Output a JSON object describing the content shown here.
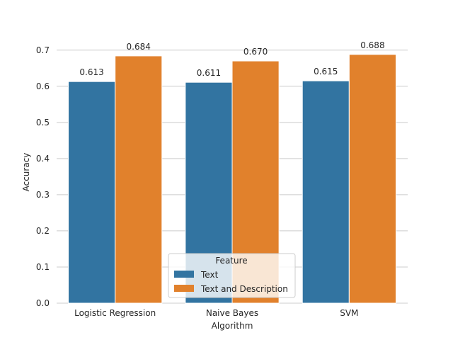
{
  "chart_data": {
    "type": "bar",
    "categories": [
      "Logistic Regression",
      "Naive Bayes",
      "SVM"
    ],
    "series": [
      {
        "name": "Text",
        "values": [
          0.613,
          0.611,
          0.615
        ],
        "labels": [
          "0.613",
          "0.611",
          "0.615"
        ],
        "color": "#3274a1"
      },
      {
        "name": "Text and Description",
        "values": [
          0.684,
          0.67,
          0.688
        ],
        "labels": [
          "0.684",
          "0.670",
          "0.688"
        ],
        "color": "#e1812c"
      }
    ],
    "xlabel": "Algorithm",
    "ylabel": "Accuracy",
    "ylim": [
      0,
      0.7
    ],
    "yticks": [
      "0.0",
      "0.1",
      "0.2",
      "0.3",
      "0.4",
      "0.5",
      "0.6",
      "0.7"
    ],
    "grid": "horizontal",
    "legend": {
      "title": "Feature",
      "placement": "lower-center"
    }
  },
  "colors": {
    "grid": "#cccccc",
    "text": "#262626"
  }
}
